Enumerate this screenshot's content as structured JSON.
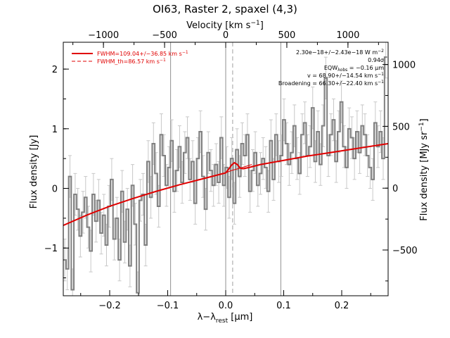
{
  "chart_data": {
    "type": "line",
    "title": "OI63, Raster 2, spaxel (4,3)",
    "xlabel_bottom_main": "λ−λ",
    "xlabel_bottom_sub": "rest",
    "xlabel_bottom_unit": " [μm]",
    "xlabel_top": "Velocity [km s",
    "xlabel_top_exp": "−1",
    "xlabel_top_tail": "]",
    "ylabel_left": "Flux density [Jy]",
    "ylabel_right": "Flux density [MJy sr",
    "ylabel_right_exp": "−1",
    "ylabel_right_tail": "]",
    "xlim": [
      -0.28,
      0.28
    ],
    "ylim_left": [
      -1.8,
      2.45
    ],
    "ylim_right": [
      -870,
      1180
    ],
    "x_ticks_bottom": [
      -0.2,
      -0.1,
      0.0,
      0.1,
      0.2
    ],
    "x_tick_labels_bottom": [
      "−0.2",
      "−0.1",
      "0.0",
      "0.1",
      "0.2"
    ],
    "x_ticks_top": [
      -1000,
      -500,
      0,
      500,
      1000
    ],
    "x_tick_labels_top": [
      "−1000",
      "−500",
      "0",
      "500",
      "1000"
    ],
    "y_ticks_left": [
      -1,
      0,
      1,
      2
    ],
    "y_tick_labels_left": [
      "−1",
      "0",
      "1",
      "2"
    ],
    "y_ticks_right": [
      -500,
      0,
      500,
      1000
    ],
    "y_tick_labels_right": [
      "−500",
      "0",
      "500",
      "1000"
    ],
    "vertical_lines": [
      -0.095,
      0.0,
      0.095
    ],
    "dashed_vertical_line": 0.012,
    "legend": [
      {
        "label": "FWHM=109.04+/−36.85 km s",
        "exp": "−1",
        "style": "solid",
        "color": "#e00000"
      },
      {
        "label": "FWHM_th=86.57 km s",
        "exp": "−1",
        "style": "dashed",
        "color": "#e00000"
      }
    ],
    "annotations": [
      {
        "text": "2.30e−18+/−2.43e−18 W m",
        "exp": "−2"
      },
      {
        "text": "0.94σ"
      },
      {
        "text": "EQW",
        "sub": "λobs",
        "tail": " = −0.16 μm"
      },
      {
        "text": "v = 68.90+/−14.54 km s",
        "exp": "−1"
      },
      {
        "text": "Broadening = 66.30+/−22.40 km s",
        "exp": "−1"
      }
    ],
    "series": [
      {
        "style": "steps",
        "color": "#808080",
        "x": [
          -0.2775,
          -0.273,
          -0.2685,
          -0.264,
          -0.2595,
          -0.255,
          -0.2505,
          -0.246,
          -0.2415,
          -0.237,
          -0.2325,
          -0.228,
          -0.2235,
          -0.219,
          -0.2145,
          -0.21,
          -0.2055,
          -0.201,
          -0.1965,
          -0.192,
          -0.1875,
          -0.183,
          -0.1785,
          -0.174,
          -0.1695,
          -0.165,
          -0.1605,
          -0.156,
          -0.1515,
          -0.147,
          -0.1425,
          -0.138,
          -0.1335,
          -0.129,
          -0.1245,
          -0.12,
          -0.1155,
          -0.111,
          -0.1065,
          -0.102,
          -0.0975,
          -0.093,
          -0.0885,
          -0.084,
          -0.0795,
          -0.075,
          -0.0705,
          -0.066,
          -0.0615,
          -0.057,
          -0.0525,
          -0.048,
          -0.0435,
          -0.039,
          -0.0345,
          -0.03,
          -0.0255,
          -0.021,
          -0.0165,
          -0.012,
          -0.0075,
          -0.003,
          0.0015,
          0.006,
          0.0105,
          0.015,
          0.0195,
          0.024,
          0.0285,
          0.033,
          0.0375,
          0.042,
          0.0465,
          0.051,
          0.0555,
          0.06,
          0.0645,
          0.069,
          0.0735,
          0.078,
          0.0825,
          0.087,
          0.0915,
          0.096,
          0.1005,
          0.105,
          0.1095,
          0.114,
          0.1185,
          0.123,
          0.1275,
          0.132,
          0.1365,
          0.141,
          0.1455,
          0.15,
          0.1545,
          0.159,
          0.1635,
          0.168,
          0.1725,
          0.177,
          0.1815,
          0.186,
          0.1905,
          0.195,
          0.1995,
          0.204,
          0.2085,
          0.213,
          0.2175,
          0.222,
          0.2265,
          0.231,
          0.2355,
          0.24,
          0.2445,
          0.249,
          0.2535,
          0.258,
          0.2625,
          0.267,
          0.2715,
          0.276
        ],
        "y": [
          -1.2,
          -1.35,
          0.2,
          -1.7,
          -0.1,
          -0.35,
          -0.8,
          -0.4,
          -0.15,
          -0.65,
          -1.05,
          -0.1,
          -0.55,
          -0.2,
          -0.75,
          -0.45,
          -0.95,
          -0.3,
          0.15,
          -0.85,
          -0.5,
          -1.2,
          -0.05,
          -0.9,
          -0.35,
          -1.3,
          0.05,
          -0.6,
          -1.75,
          -0.2,
          -0.1,
          -0.95,
          0.45,
          -0.15,
          0.75,
          0.25,
          -0.3,
          0.9,
          0.55,
          0.05,
          0.35,
          0.8,
          -0.05,
          0.3,
          0.7,
          0.1,
          0.6,
          0.85,
          0.15,
          0.45,
          -0.25,
          0.5,
          0.95,
          0.2,
          -0.35,
          0.6,
          0.3,
          0.05,
          0.4,
          0.1,
          0.85,
          0.05,
          0.35,
          -0.15,
          0.5,
          -0.25,
          0.65,
          0.2,
          0.75,
          0.55,
          0.9,
          -0.05,
          0.3,
          0.6,
          0.05,
          0.25,
          0.5,
          0.35,
          -0.05,
          0.8,
          0.15,
          0.9,
          0.45,
          0.55,
          1.15,
          0.75,
          0.4,
          0.6,
          1.05,
          0.5,
          0.25,
          0.9,
          1.1,
          0.55,
          0.7,
          1.35,
          0.45,
          0.95,
          0.4,
          1.05,
          1.85,
          0.55,
          0.9,
          1.15,
          0.45,
          0.95,
          1.45,
          0.7,
          0.35,
          1.0,
          0.85,
          0.5,
          0.95,
          0.6,
          1.05,
          0.9,
          0.55,
          0.35,
          0.15,
          1.1,
          0.7,
          0.95,
          0.5,
          2.2
        ],
        "err": 0.35
      },
      {
        "style": "line",
        "color": "#e00000",
        "name_ref": "legend.0",
        "x": [
          -0.28,
          -0.24,
          -0.2,
          -0.16,
          -0.12,
          -0.08,
          -0.04,
          -0.02,
          0.0,
          0.005,
          0.01,
          0.015,
          0.02,
          0.025,
          0.03,
          0.035,
          0.04,
          0.06,
          0.1,
          0.14,
          0.18,
          0.22,
          0.26,
          0.28
        ],
        "y": [
          -0.62,
          -0.45,
          -0.3,
          -0.17,
          -0.05,
          0.06,
          0.16,
          0.21,
          0.26,
          0.32,
          0.39,
          0.43,
          0.4,
          0.34,
          0.33,
          0.34,
          0.35,
          0.4,
          0.47,
          0.54,
          0.6,
          0.66,
          0.72,
          0.75
        ]
      },
      {
        "style": "line",
        "color": "#e00000",
        "width": "thin",
        "x": [
          -0.005,
          0.01,
          0.025,
          0.045
        ],
        "y": [
          0.24,
          0.3,
          0.34,
          0.4
        ]
      }
    ]
  }
}
